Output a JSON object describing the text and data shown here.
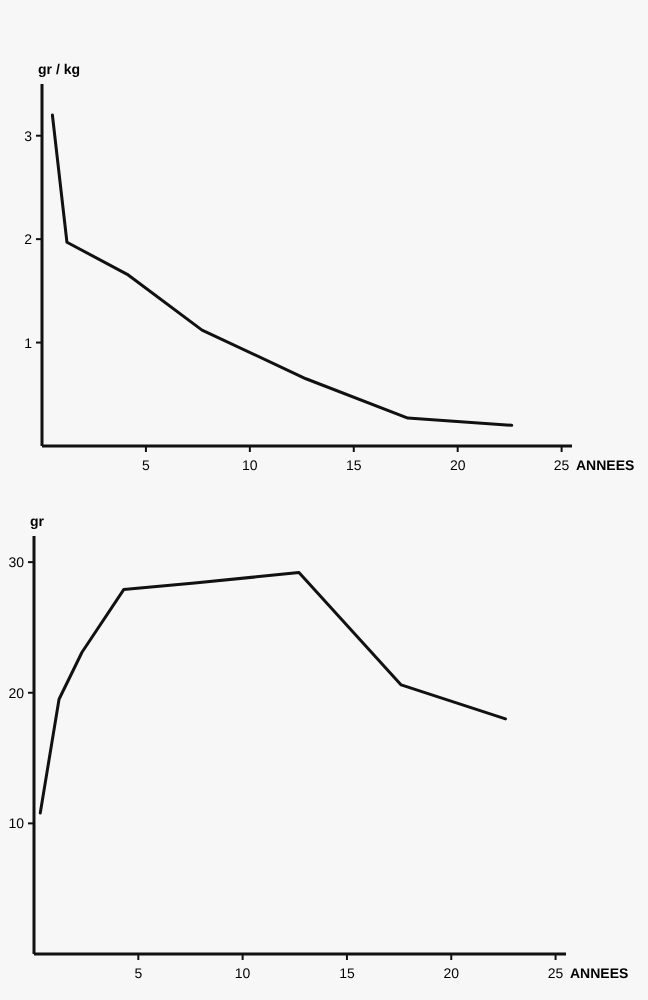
{
  "chart_data": [
    {
      "type": "line",
      "ylabel": "gr / kg",
      "xlabel": "ANNEES",
      "x": [
        0.5,
        1.2,
        4.1,
        7.7,
        12.7,
        17.6,
        22.6
      ],
      "values": [
        3.2,
        1.97,
        1.66,
        1.12,
        0.65,
        0.27,
        0.2
      ],
      "color": "#111111",
      "xlim": [
        0,
        25.5
      ],
      "ylim": [
        0,
        3.5
      ],
      "xticks": [
        5,
        10,
        15,
        20,
        25
      ],
      "yticks": [
        1,
        2,
        3
      ],
      "grid": false,
      "marker": "none",
      "line_style": "solid"
    },
    {
      "type": "line",
      "ylabel": "gr",
      "xlabel": "ANNEES",
      "x": [
        0.3,
        1.2,
        2.3,
        4.3,
        7.7,
        12.7,
        17.6,
        22.6
      ],
      "values": [
        10.8,
        19.5,
        23.1,
        27.9,
        28.4,
        29.2,
        20.6,
        18
      ],
      "color": "#111111",
      "xlim": [
        0,
        25.5
      ],
      "ylim": [
        0,
        32
      ],
      "xticks": [
        5,
        10,
        15,
        20,
        25
      ],
      "yticks": [
        10,
        20,
        30
      ],
      "grid": false,
      "marker": "none",
      "line_style": "solid"
    }
  ]
}
